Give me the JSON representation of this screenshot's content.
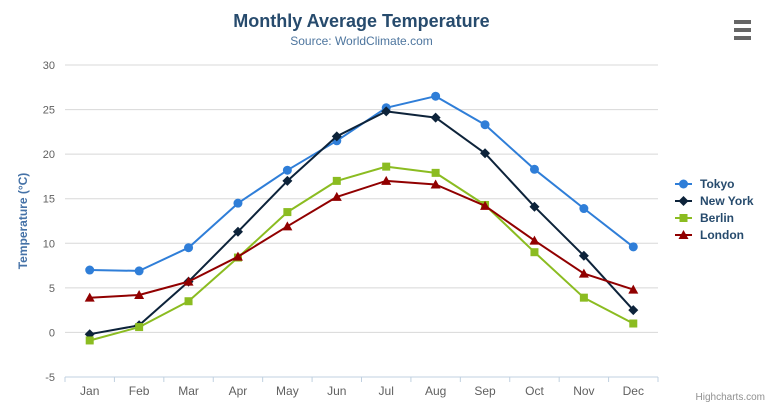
{
  "chart_data": {
    "type": "line",
    "title": "Monthly Average Temperature",
    "subtitle": "Source: WorldClimate.com",
    "categories": [
      "Jan",
      "Feb",
      "Mar",
      "Apr",
      "May",
      "Jun",
      "Jul",
      "Aug",
      "Sep",
      "Oct",
      "Nov",
      "Dec"
    ],
    "xlabel": "",
    "ylabel": "Temperature (°C)",
    "ylim": [
      -5,
      30
    ],
    "ytick_step": 5,
    "grid": true,
    "legend_position": "right",
    "series": [
      {
        "name": "Tokyo",
        "color": "#2f7ed8",
        "marker": "circle",
        "values": [
          7.0,
          6.9,
          9.5,
          14.5,
          18.2,
          21.5,
          25.2,
          26.5,
          23.3,
          18.3,
          13.9,
          9.6
        ]
      },
      {
        "name": "New York",
        "color": "#0d233a",
        "marker": "diamond",
        "values": [
          -0.2,
          0.8,
          5.7,
          11.3,
          17.0,
          22.0,
          24.8,
          24.1,
          20.1,
          14.1,
          8.6,
          2.5
        ]
      },
      {
        "name": "Berlin",
        "color": "#8bbc21",
        "marker": "square",
        "values": [
          -0.9,
          0.6,
          3.5,
          8.4,
          13.5,
          17.0,
          18.6,
          17.9,
          14.3,
          9.0,
          3.9,
          1.0
        ]
      },
      {
        "name": "London",
        "color": "#910000",
        "marker": "triangle",
        "values": [
          3.9,
          4.2,
          5.7,
          8.5,
          11.9,
          15.2,
          17.0,
          16.6,
          14.2,
          10.3,
          6.6,
          4.8
        ]
      }
    ]
  },
  "credit": "Highcharts.com",
  "theme": {
    "background": "#ffffff",
    "title_color": "#274b6d",
    "subtitle_color": "#4d759e",
    "axis_title_color": "#4572a7",
    "tick_label_color": "#606060",
    "grid_color": "#d8d8d8",
    "axis_line_color": "#c0d0e0",
    "legend_text_color": "#274b6d",
    "credit_color": "#909090",
    "menu_icon_color": "#666666"
  }
}
